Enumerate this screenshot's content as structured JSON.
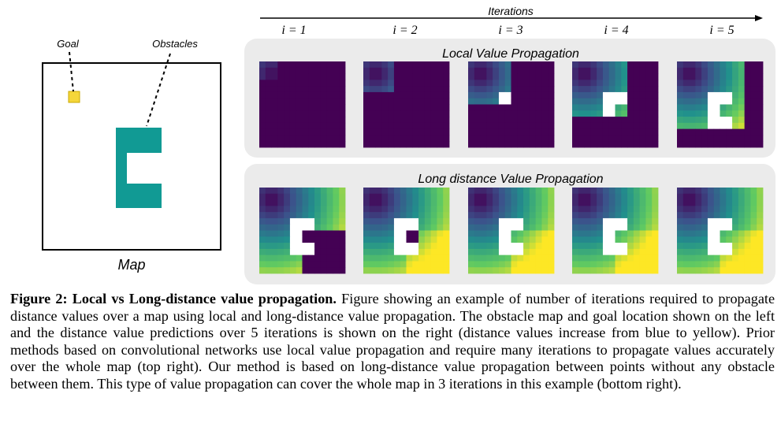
{
  "figure": {
    "map": {
      "title": "Map",
      "goal_label": "Goal",
      "obstacles_label": "Obstacles",
      "goal_color": "#f5d63a",
      "obstacle_color": "#119a94"
    },
    "iterations": {
      "axis_label": "Iterations",
      "steps": [
        "i = 1",
        "i = 2",
        "i = 3",
        "i = 4",
        "i = 5"
      ]
    },
    "panels": [
      {
        "title": "Local Value Propagation"
      },
      {
        "title": "Long distance Value Propagation"
      }
    ],
    "colormap": [
      "#440154",
      "#3b528b",
      "#21918c",
      "#5ec962",
      "#fde725"
    ]
  },
  "caption": {
    "label": "Figure 2:",
    "heading": "Local vs Long-distance value propagation.",
    "text": "Figure showing an example of number of iterations required to propagate distance values over a map using local and long-distance value propagation. The obstacle map and goal location shown on the left and the distance value predictions over 5 iterations is shown on the right (distance values increase from blue to yellow). Prior methods based on convolutional networks use local value propagation and require many iterations to propagate values accurately over the whole map (top right). Our method is based on long-distance value propagation between points without any obstacle between them. This type of value propagation can cover the whole map in 3 iterations in this example (bottom right)."
  }
}
